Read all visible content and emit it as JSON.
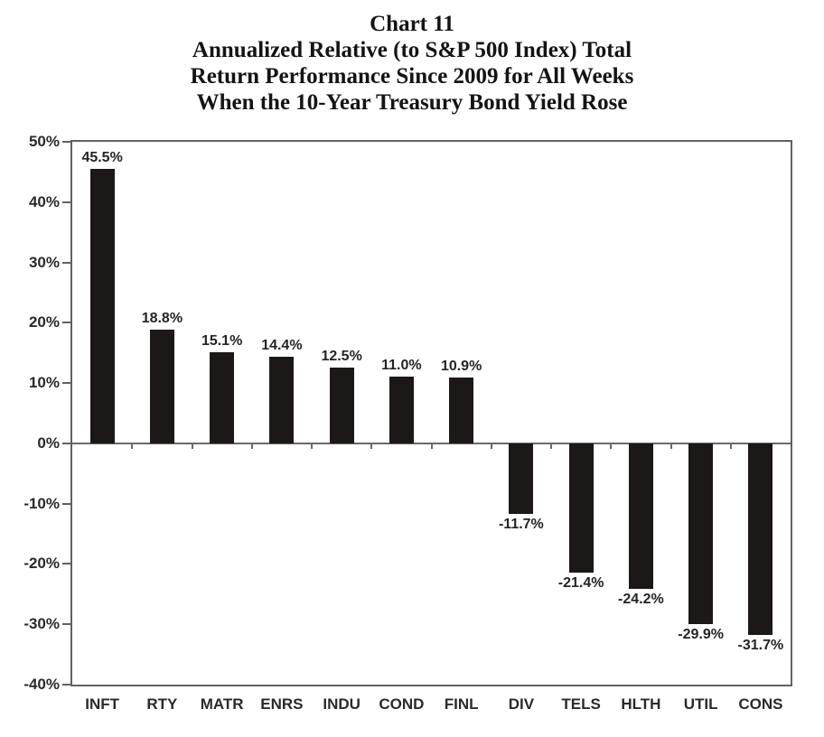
{
  "title": {
    "line1": "Chart 11",
    "line2": "Annualized Relative (to S&P 500 Index) Total",
    "line3": "Return Performance Since 2009 for All Weeks",
    "line4": "When the 10-Year Treasury Bond Yield Rose"
  },
  "chart_data": {
    "type": "bar",
    "title": "Chart 11",
    "subtitle": "Annualized Relative (to S&P 500 Index) Total Return Performance Since 2009 for All Weeks When the 10-Year Treasury Bond Yield Rose",
    "categories": [
      "INFT",
      "RTY",
      "MATR",
      "ENRS",
      "INDU",
      "COND",
      "FINL",
      "DIV",
      "TELS",
      "HLTH",
      "UTIL",
      "CONS"
    ],
    "values": [
      45.5,
      18.8,
      15.1,
      14.4,
      12.5,
      11.0,
      10.9,
      -11.7,
      -21.4,
      -24.2,
      -29.9,
      -31.7
    ],
    "value_labels": [
      "45.5%",
      "18.8%",
      "15.1%",
      "14.4%",
      "12.5%",
      "11.0%",
      "10.9%",
      "-11.7%",
      "-21.4%",
      "-24.2%",
      "-29.9%",
      "-31.7%"
    ],
    "xlabel": "",
    "ylabel": "",
    "ylim": [
      -40,
      50
    ],
    "y_ticks": [
      50,
      40,
      30,
      20,
      10,
      0,
      -10,
      -20,
      -30,
      -40
    ],
    "y_tick_labels": [
      "50%",
      "40%",
      "30%",
      "20%",
      "10%",
      "0%",
      "-10%",
      "-20%",
      "-30%",
      "-40%"
    ],
    "grid": false,
    "legend": null,
    "bar_color": "#1b1817",
    "axis_color": "#616161",
    "label_color": "#242424"
  }
}
